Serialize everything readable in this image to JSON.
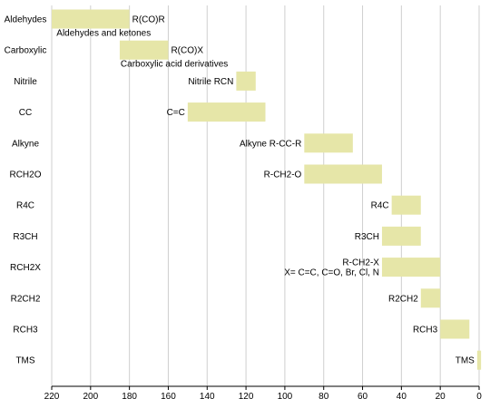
{
  "chart_data": {
    "type": "bar",
    "orientation": "horizontal",
    "x_axis_reversed": true,
    "xlim": [
      220,
      0
    ],
    "xticks": [
      220,
      200,
      180,
      160,
      140,
      120,
      100,
      80,
      60,
      40,
      20,
      0
    ],
    "grid": true,
    "bar_color": "#e6e6a8",
    "categories": [
      "Aldehydes",
      "Carboxylic",
      "Nitrile",
      "CC",
      "Alkyne",
      "RCH2O",
      "R4C",
      "R3CH",
      "RCH2X",
      "R2CH2",
      "RCH3",
      "TMS"
    ],
    "ranges": [
      {
        "start": 220,
        "end": 180
      },
      {
        "start": 185,
        "end": 160
      },
      {
        "start": 125,
        "end": 115
      },
      {
        "start": 150,
        "end": 110
      },
      {
        "start": 90,
        "end": 65
      },
      {
        "start": 90,
        "end": 50
      },
      {
        "start": 45,
        "end": 30
      },
      {
        "start": 50,
        "end": 30
      },
      {
        "start": 50,
        "end": 20
      },
      {
        "start": 30,
        "end": 20
      },
      {
        "start": 20,
        "end": 5
      },
      {
        "start": 1,
        "end": -1
      }
    ],
    "annotations": [
      {
        "lines": [
          "R(CO)R"
        ],
        "near_value": 180,
        "side": "right"
      },
      {
        "lines": [
          "R(CO)X"
        ],
        "near_value": 160,
        "side": "right"
      },
      {
        "lines": [
          "Nitrile RCN"
        ],
        "near_value": 125,
        "side": "left"
      },
      {
        "lines": [
          "C=C"
        ],
        "near_value": 150,
        "side": "left"
      },
      {
        "lines": [
          "Alkyne R-CC-R"
        ],
        "near_value": 90,
        "side": "left"
      },
      {
        "lines": [
          "R-CH2-O"
        ],
        "near_value": 90,
        "side": "left"
      },
      {
        "lines": [
          "R4C"
        ],
        "near_value": 45,
        "side": "left"
      },
      {
        "lines": [
          "R3CH"
        ],
        "near_value": 50,
        "side": "left"
      },
      {
        "lines": [
          "R-CH2-X",
          "X= C=C, C=O, Br, Cl, N"
        ],
        "near_value": 50,
        "side": "left"
      },
      {
        "lines": [
          "R2CH2"
        ],
        "near_value": 30,
        "side": "left"
      },
      {
        "lines": [
          "RCH3"
        ],
        "near_value": 20,
        "side": "left"
      },
      {
        "lines": [
          "TMS"
        ],
        "near_value": 1,
        "side": "left"
      }
    ],
    "sub_annotations": [
      {
        "text": "Aldehydes and ketones",
        "category_index": 0,
        "near_value": 218
      },
      {
        "text": "Carboxylic acid derivatives",
        "category_index": 1,
        "near_value": 185
      }
    ]
  }
}
